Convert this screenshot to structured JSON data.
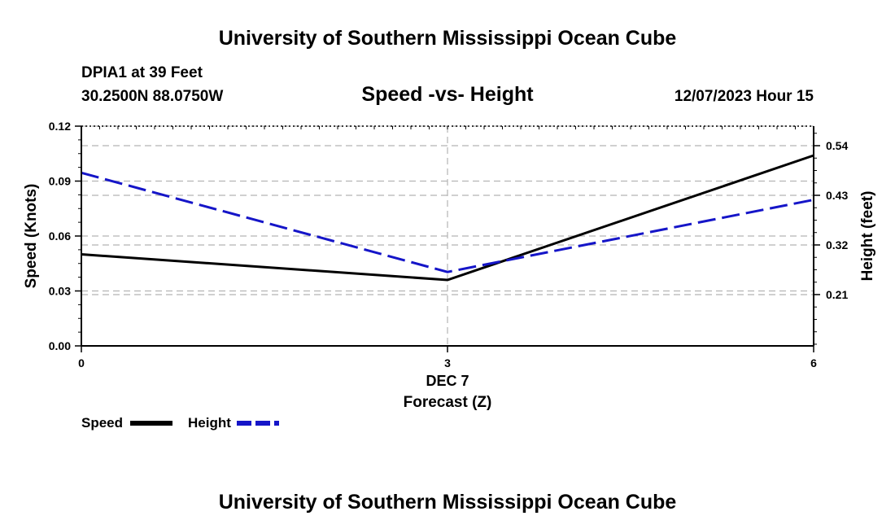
{
  "header": {
    "title_top": "University of Southern Mississippi Ocean Cube",
    "station": "DPIA1 at 39 Feet",
    "coords": "30.2500N  88.0750W",
    "chart_title": "Speed -vs- Height",
    "timestamp": "12/07/2023 Hour 15",
    "title_bottom": "University of Southern Mississippi Ocean Cube"
  },
  "legend": {
    "speed_label": "Speed",
    "height_label": "Height"
  },
  "colors": {
    "speed": "#000000",
    "height": "#1515c8",
    "grid": "#b4b4b4"
  },
  "chart_data": {
    "type": "line",
    "title": "Speed -vs- Height",
    "xlabel": "Forecast (Z)",
    "x_date_label": "DEC 7",
    "x": [
      0,
      3,
      6
    ],
    "xlim": [
      0,
      6
    ],
    "x_tick_labels": [
      "0",
      "3",
      "6"
    ],
    "y_left": {
      "label": "Speed (Knots)",
      "lim": [
        0,
        0.12
      ],
      "ticks": [
        0.0,
        0.03,
        0.06,
        0.09,
        0.12
      ],
      "tick_labels": [
        "0.00",
        "0.03",
        "0.06",
        "0.09",
        "0.12"
      ]
    },
    "y_right": {
      "label": "Height (feet)",
      "lim": [
        0.0963,
        0.5833
      ],
      "ticks": [
        0.21,
        0.32,
        0.43,
        0.54
      ],
      "tick_labels": [
        "0.21",
        "0.32",
        "0.43",
        "0.54"
      ]
    },
    "grid": true,
    "legend_position": "bottom-left",
    "series": [
      {
        "name": "Speed",
        "axis": "left",
        "style": "solid",
        "values": [
          0.05,
          0.036,
          0.104
        ]
      },
      {
        "name": "Height",
        "axis": "right",
        "style": "dashed",
        "values": [
          0.48,
          0.26,
          0.42
        ]
      }
    ]
  }
}
